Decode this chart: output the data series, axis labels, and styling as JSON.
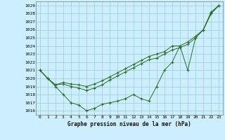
{
  "title": "Graphe pression niveau de la mer (hPa)",
  "background_color": "#cceeff",
  "grid_color": "#99cccc",
  "line_color": "#2d6a2d",
  "x_labels": [
    "0",
    "1",
    "2",
    "3",
    "4",
    "5",
    "6",
    "7",
    "8",
    "9",
    "10",
    "11",
    "12",
    "13",
    "14",
    "15",
    "16",
    "17",
    "18",
    "19",
    "20",
    "21",
    "22",
    "23"
  ],
  "ylim": [
    1015.5,
    1029.5
  ],
  "yticks": [
    1016,
    1017,
    1018,
    1019,
    1020,
    1021,
    1022,
    1023,
    1024,
    1025,
    1026,
    1027,
    1028,
    1029
  ],
  "line1": [
    1021,
    1020,
    1019,
    1018,
    1017,
    1016.7,
    1016,
    1016.3,
    1016.8,
    1017,
    1017.2,
    1017.5,
    1018,
    1017.5,
    1017.2,
    1019,
    1021,
    1022,
    1024,
    1021,
    1025,
    1026,
    1028,
    1029
  ],
  "line2": [
    1021,
    1020,
    1019.2,
    1019.3,
    1019.0,
    1018.8,
    1018.5,
    1018.8,
    1019.2,
    1019.8,
    1020.3,
    1020.8,
    1021.3,
    1021.8,
    1022.3,
    1022.5,
    1023.0,
    1023.5,
    1023.8,
    1024.2,
    1025,
    1026,
    1028,
    1029
  ],
  "line3": [
    1021,
    1020,
    1019.2,
    1019.5,
    1019.3,
    1019.2,
    1019.0,
    1019.3,
    1019.7,
    1020.2,
    1020.7,
    1021.2,
    1021.7,
    1022.2,
    1022.7,
    1023.0,
    1023.3,
    1024.0,
    1024.0,
    1024.5,
    1025.2,
    1026.0,
    1028.2,
    1029
  ]
}
